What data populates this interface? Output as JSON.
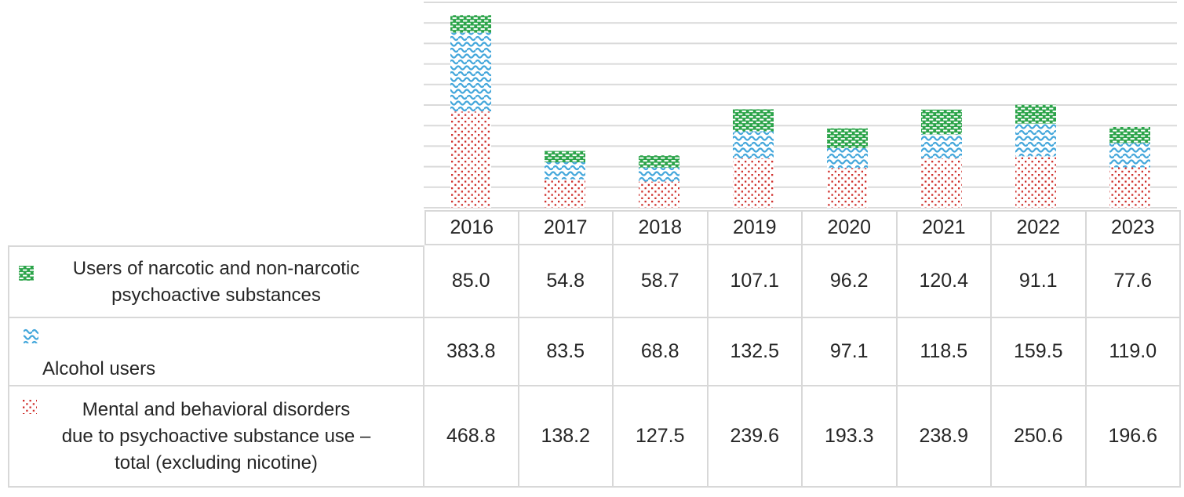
{
  "chart_data": {
    "type": "bar",
    "stacked": true,
    "title": "",
    "xlabel": "",
    "ylabel": "",
    "categories": [
      "2016",
      "2017",
      "2018",
      "2019",
      "2020",
      "2021",
      "2022",
      "2023"
    ],
    "series": [
      {
        "name": "Mental and behavioral disorders due to psychoactive substance use – total (excluding nicotine)",
        "pattern": "dots",
        "color": "#D0302C",
        "values": [
          468.8,
          138.2,
          127.5,
          239.6,
          193.3,
          238.9,
          250.6,
          196.6
        ]
      },
      {
        "name": "Alcohol users",
        "pattern": "wave",
        "color": "#44A7DB",
        "values": [
          383.8,
          83.5,
          68.8,
          132.5,
          97.1,
          118.5,
          159.5,
          119.0
        ]
      },
      {
        "name": "Users of narcotic and non-narcotic psychoactive substances",
        "pattern": "brick",
        "color": "#2CA44A",
        "values": [
          85.0,
          54.8,
          58.7,
          107.1,
          96.2,
          120.4,
          91.1,
          77.6
        ]
      }
    ],
    "ylim": [
      0,
      1000
    ],
    "gridline_step": 100,
    "grid": true,
    "y_axis_labels_visible": false,
    "legend_position": "left-of-data-table",
    "value_format": "one-decimal"
  },
  "data_table": {
    "rows": [
      {
        "series_index": 2,
        "pattern": "brick",
        "label_lines": [
          "Users of narcotic and non-narcotic",
          "psychoactive substances"
        ]
      },
      {
        "series_index": 1,
        "pattern": "wave",
        "label_lines": [
          "Alcohol users"
        ]
      },
      {
        "series_index": 0,
        "pattern": "dots",
        "label_lines": [
          "Mental and behavioral disorders",
          "due to psychoactive substance use –",
          "total (excluding nicotine)"
        ]
      }
    ]
  },
  "colors": {
    "gridline": "#DADADA",
    "table_border": "#D8D8D8",
    "text": "#262626",
    "background": "#FFFFFF",
    "red_series": "#D0302C",
    "blue_series": "#44A7DB",
    "green_series": "#2CA44A"
  }
}
